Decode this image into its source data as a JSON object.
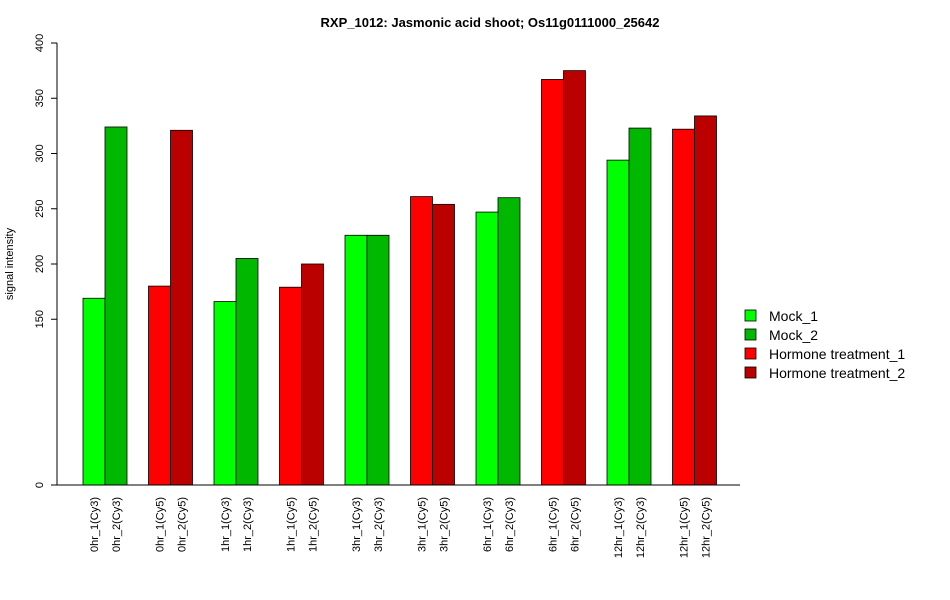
{
  "chart_data": {
    "type": "bar",
    "title": "RXP_1012: Jasmonic acid shoot; Os11g0111000_25642",
    "xlabel": "",
    "ylabel": "signal intensity",
    "ylim": [
      0,
      400
    ],
    "yticks": [
      0,
      150,
      200,
      250,
      300,
      350,
      400
    ],
    "grid": false,
    "legend_position": "right",
    "categories": [
      "0hr_1(Cy3)",
      "0hr_2(Cy3)",
      "0hr_1(Cy5)",
      "0hr_2(Cy5)",
      "1hr_1(Cy3)",
      "1hr_2(Cy3)",
      "1hr_1(Cy5)",
      "1hr_2(Cy5)",
      "3hr_1(Cy3)",
      "3hr_2(Cy3)",
      "3hr_1(Cy5)",
      "3hr_2(Cy5)",
      "6hr_1(Cy3)",
      "6hr_2(Cy3)",
      "6hr_1(Cy5)",
      "6hr_2(Cy5)",
      "12hr_1(Cy3)",
      "12hr_2(Cy3)",
      "12hr_1(Cy5)",
      "12hr_2(Cy5)"
    ],
    "values": [
      169,
      324,
      180,
      321,
      166,
      205,
      179,
      200,
      226,
      226,
      261,
      254,
      247,
      260,
      367,
      375,
      294,
      323,
      322,
      334
    ],
    "bar_series": [
      0,
      1,
      2,
      3,
      0,
      1,
      2,
      3,
      0,
      1,
      2,
      3,
      0,
      1,
      2,
      3,
      0,
      1,
      2,
      3
    ],
    "series": [
      {
        "name": "Mock_1",
        "color": "#00ff00"
      },
      {
        "name": "Mock_2",
        "color": "#00b800"
      },
      {
        "name": "Hormone treatment_1",
        "color": "#ff0000"
      },
      {
        "name": "Hormone treatment_2",
        "color": "#bb0000"
      }
    ]
  }
}
